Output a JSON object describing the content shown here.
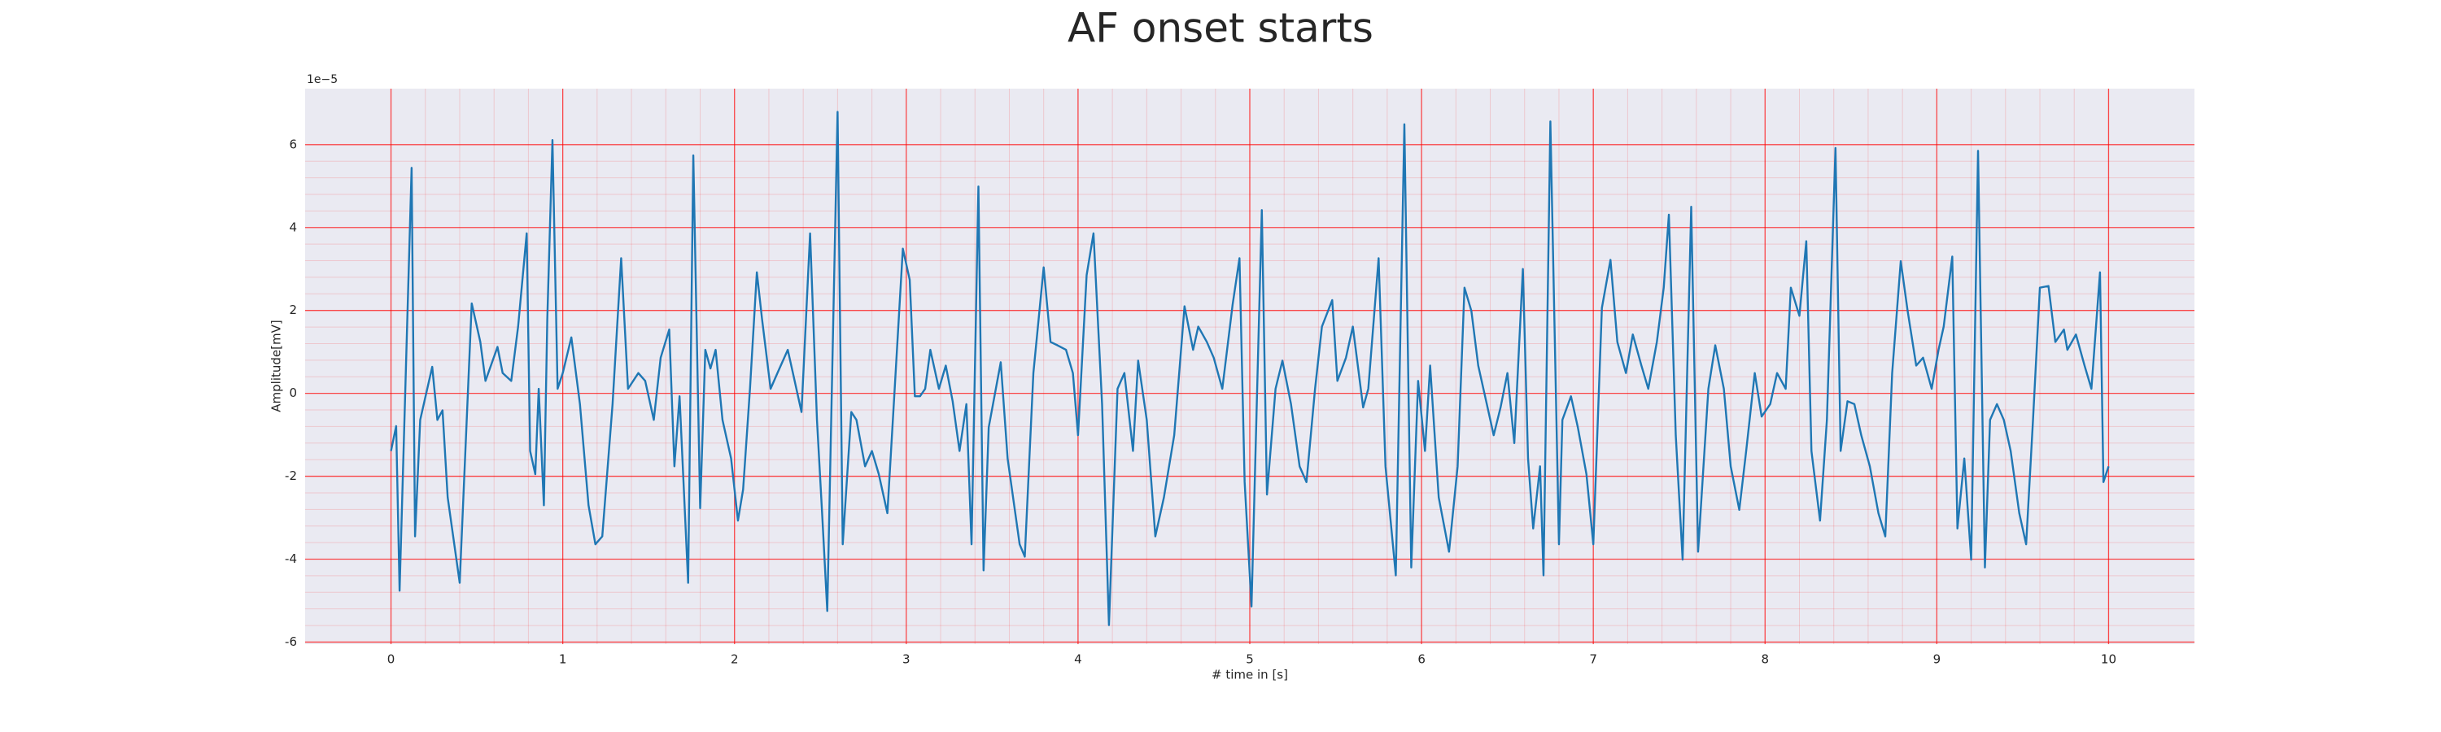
{
  "chart_data": {
    "type": "line",
    "title": "AF onset starts",
    "xlabel": "# time in [s]",
    "ylabel": "Amplitude[mV]",
    "y_offset_label": "1e−5",
    "xlim": [
      -0.5,
      10.5
    ],
    "ylim": [
      -6.05,
      7.35
    ],
    "xticks": [
      0,
      1,
      2,
      3,
      4,
      5,
      6,
      7,
      8,
      9,
      10
    ],
    "yticks": [
      -6,
      -4,
      -2,
      0,
      2,
      4,
      6
    ],
    "grid": true,
    "minor_grid": true,
    "grid_color": "#ff0000",
    "background": "#eaeaf2",
    "series": [
      {
        "color": "#1f77b4",
        "x": [
          0,
          0.03,
          0.05,
          0.12,
          0.14,
          0.17,
          0.24,
          0.27,
          0.3,
          0.33,
          0.4,
          0.47,
          0.52,
          0.55,
          0.62,
          0.65,
          0.7,
          0.74,
          0.79,
          0.81,
          0.84,
          0.86,
          0.89,
          0.91,
          0.94,
          0.97,
          1.0,
          1.05,
          1.1,
          1.15,
          1.19,
          1.23,
          1.29,
          1.34,
          1.38,
          1.44,
          1.48,
          1.53,
          1.57,
          1.62,
          1.65,
          1.68,
          1.73,
          1.76,
          1.8,
          1.83,
          1.86,
          1.89,
          1.93,
          1.98,
          2.02,
          2.05,
          2.09,
          2.13,
          2.16,
          2.21,
          2.25,
          2.31,
          2.34,
          2.39,
          2.44,
          2.48,
          2.51,
          2.54,
          2.6,
          2.63,
          2.68,
          2.71,
          2.76,
          2.8,
          2.84,
          2.89,
          2.93,
          2.98,
          3.02,
          3.05,
          3.08,
          3.11,
          3.14,
          3.19,
          3.23,
          3.27,
          3.31,
          3.35,
          3.38,
          3.42,
          3.45,
          3.48,
          3.55,
          3.59,
          3.66,
          3.69,
          3.74,
          3.8,
          3.84,
          3.88,
          3.93,
          3.97,
          4.0,
          4.05,
          4.09,
          4.14,
          4.18,
          4.23,
          4.27,
          4.32,
          4.35,
          4.4,
          4.45,
          4.5,
          4.56,
          4.62,
          4.67,
          4.7,
          4.75,
          4.79,
          4.84,
          4.9,
          4.94,
          4.97,
          5.01,
          5.07,
          5.1,
          5.15,
          5.19,
          5.24,
          5.29,
          5.33,
          5.38,
          5.42,
          5.48,
          5.51,
          5.56,
          5.6,
          5.66,
          5.69,
          5.75,
          5.79,
          5.85,
          5.9,
          5.94,
          5.98,
          6.02,
          6.05,
          6.1,
          6.16,
          6.21,
          6.25,
          6.29,
          6.33,
          6.38,
          6.42,
          6.46,
          6.5,
          6.54,
          6.59,
          6.62,
          6.65,
          6.69,
          6.71,
          6.75,
          6.8,
          6.82,
          6.87,
          6.91,
          6.96,
          7.0,
          7.05,
          7.1,
          7.14,
          7.19,
          7.23,
          7.28,
          7.32,
          7.37,
          7.41,
          7.44,
          7.48,
          7.52,
          7.57,
          7.61,
          7.67,
          7.71,
          7.76,
          7.8,
          7.85,
          7.89,
          7.94,
          7.98,
          8.03,
          8.07,
          8.12,
          8.15,
          8.2,
          8.24,
          8.27,
          8.32,
          8.36,
          8.41,
          8.44,
          8.48,
          8.52,
          8.56,
          8.61,
          8.66,
          8.7,
          8.74,
          8.79,
          8.83,
          8.88,
          8.92,
          8.97,
          9.01,
          9.04,
          9.09,
          9.12,
          9.16,
          9.2,
          9.24,
          9.28,
          9.31,
          9.35,
          9.39,
          9.43,
          9.48,
          9.52,
          9.56,
          9.6,
          9.65,
          9.69,
          9.74,
          9.76,
          9.81,
          9.86,
          9.9,
          9.95,
          9.97,
          10.0
        ],
        "values": [
          -1.39,
          -0.79,
          -4.76,
          5.44,
          -3.45,
          -0.64,
          0.64,
          -0.64,
          -0.41,
          -2.51,
          -4.57,
          2.17,
          1.24,
          0.3,
          1.12,
          0.49,
          0.3,
          1.61,
          3.86,
          -1.39,
          -1.95,
          0.11,
          -2.7,
          1.8,
          6.11,
          0.11,
          0.49,
          1.35,
          -0.26,
          -2.7,
          -3.64,
          -3.45,
          -0.26,
          3.26,
          0.11,
          0.49,
          0.3,
          -0.64,
          0.86,
          1.54,
          -1.76,
          -0.07,
          -4.57,
          5.74,
          -2.77,
          1.05,
          0.6,
          1.05,
          -0.64,
          -1.57,
          -3.07,
          -2.32,
          0.11,
          2.92,
          1.8,
          0.11,
          0.49,
          1.05,
          0.49,
          -0.45,
          3.86,
          -0.64,
          -2.89,
          -5.25,
          6.79,
          -3.64,
          -0.45,
          -0.64,
          -1.76,
          -1.39,
          -1.95,
          -2.89,
          -0.07,
          3.49,
          2.74,
          -0.07,
          -0.07,
          0.11,
          1.05,
          0.11,
          0.67,
          -0.19,
          -1.39,
          -0.26,
          -3.64,
          4.99,
          -4.27,
          -0.82,
          0.75,
          -1.57,
          -3.64,
          -3.94,
          0.49,
          3.04,
          1.24,
          1.16,
          1.05,
          0.49,
          -1.01,
          2.85,
          3.86,
          -0.26,
          -5.59,
          0.11,
          0.49,
          -1.39,
          0.79,
          -0.64,
          -3.45,
          -2.51,
          -1.01,
          2.1,
          1.05,
          1.61,
          1.24,
          0.86,
          0.11,
          2.14,
          3.26,
          -2.14,
          -5.14,
          4.42,
          -2.44,
          0.11,
          0.79,
          -0.26,
          -1.76,
          -2.14,
          0.11,
          1.61,
          2.25,
          0.3,
          0.86,
          1.61,
          -0.34,
          0.11,
          3.26,
          -1.76,
          -4.39,
          6.49,
          -4.2,
          0.3,
          -1.39,
          0.67,
          -2.51,
          -3.82,
          -1.76,
          2.55,
          1.99,
          0.67,
          -0.26,
          -1.01,
          -0.34,
          0.49,
          -1.2,
          3.0,
          -1.57,
          -3.26,
          -1.76,
          -4.39,
          6.56,
          -3.64,
          -0.64,
          -0.07,
          -0.82,
          -1.95,
          -3.64,
          2.06,
          3.22,
          1.24,
          0.49,
          1.42,
          0.67,
          0.11,
          1.24,
          2.55,
          4.31,
          -1.01,
          -4.01,
          4.5,
          -3.82,
          0.11,
          1.16,
          0.11,
          -1.76,
          -2.81,
          -1.39,
          0.49,
          -0.56,
          -0.26,
          0.49,
          0.11,
          2.55,
          1.87,
          3.67,
          -1.39,
          -3.07,
          -0.64,
          5.92,
          -1.39,
          -0.19,
          -0.26,
          -1.01,
          -1.76,
          -2.89,
          -3.45,
          0.49,
          3.19,
          1.99,
          0.67,
          0.86,
          0.11,
          1.05,
          1.61,
          3.3,
          -3.26,
          -1.57,
          -4.01,
          5.85,
          -4.2,
          -0.64,
          -0.26,
          -0.64,
          -1.39,
          -2.89,
          -3.64,
          -0.64,
          2.55,
          2.59,
          1.24,
          1.54,
          1.05,
          1.42,
          0.67,
          0.11,
          2.92,
          -2.14,
          -1.76
        ]
      }
    ]
  }
}
